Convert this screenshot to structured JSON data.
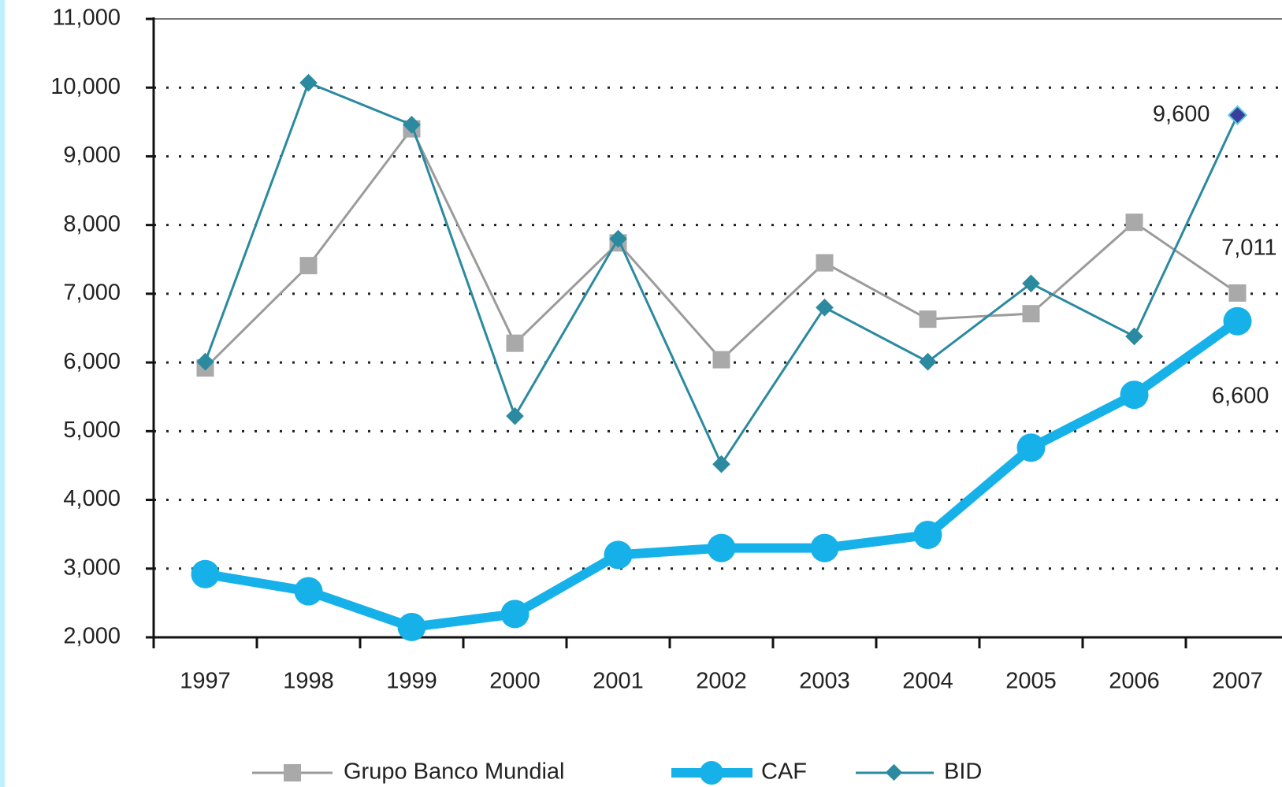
{
  "chart_data": {
    "type": "line",
    "categories": [
      "1997",
      "1998",
      "1999",
      "2000",
      "2001",
      "2002",
      "2003",
      "2004",
      "2005",
      "2006",
      "2007"
    ],
    "series": [
      {
        "name": "Grupo Banco Mundial",
        "color": "#9b9b9b",
        "marker": "square",
        "values": [
          5920,
          7410,
          9400,
          6280,
          7740,
          6040,
          7450,
          6630,
          6710,
          8040,
          7011
        ],
        "value_labels": [
          null,
          null,
          null,
          null,
          null,
          null,
          null,
          null,
          null,
          null,
          "7,011"
        ]
      },
      {
        "name": "CAF",
        "color": "#17b1ea",
        "marker": "circle",
        "values": [
          2920,
          2670,
          2150,
          2340,
          3200,
          3300,
          3300,
          3490,
          4760,
          5530,
          6600
        ],
        "value_labels": [
          null,
          null,
          null,
          null,
          null,
          null,
          null,
          null,
          null,
          null,
          "6,600"
        ]
      },
      {
        "name": "BID",
        "color": "#2b8a9f",
        "marker": "diamond",
        "values": [
          6010,
          10070,
          9460,
          5220,
          7800,
          4520,
          6800,
          6010,
          7150,
          6380,
          9600
        ],
        "value_labels": [
          null,
          null,
          null,
          null,
          null,
          null,
          null,
          null,
          null,
          null,
          "9,600"
        ]
      }
    ],
    "ylim": [
      2000,
      11000
    ],
    "yticks": [
      {
        "value": 2000,
        "label": "2,000"
      },
      {
        "value": 3000,
        "label": "3,000"
      },
      {
        "value": 4000,
        "label": "4,000"
      },
      {
        "value": 5000,
        "label": "5,000"
      },
      {
        "value": 6000,
        "label": "6,000"
      },
      {
        "value": 7000,
        "label": "7,000"
      },
      {
        "value": 8000,
        "label": "8,000"
      },
      {
        "value": 9000,
        "label": "9,000"
      },
      {
        "value": 10000,
        "label": "10,000"
      },
      {
        "value": 11000,
        "label": "11,000"
      }
    ],
    "grid": true,
    "legend": "bottom"
  }
}
